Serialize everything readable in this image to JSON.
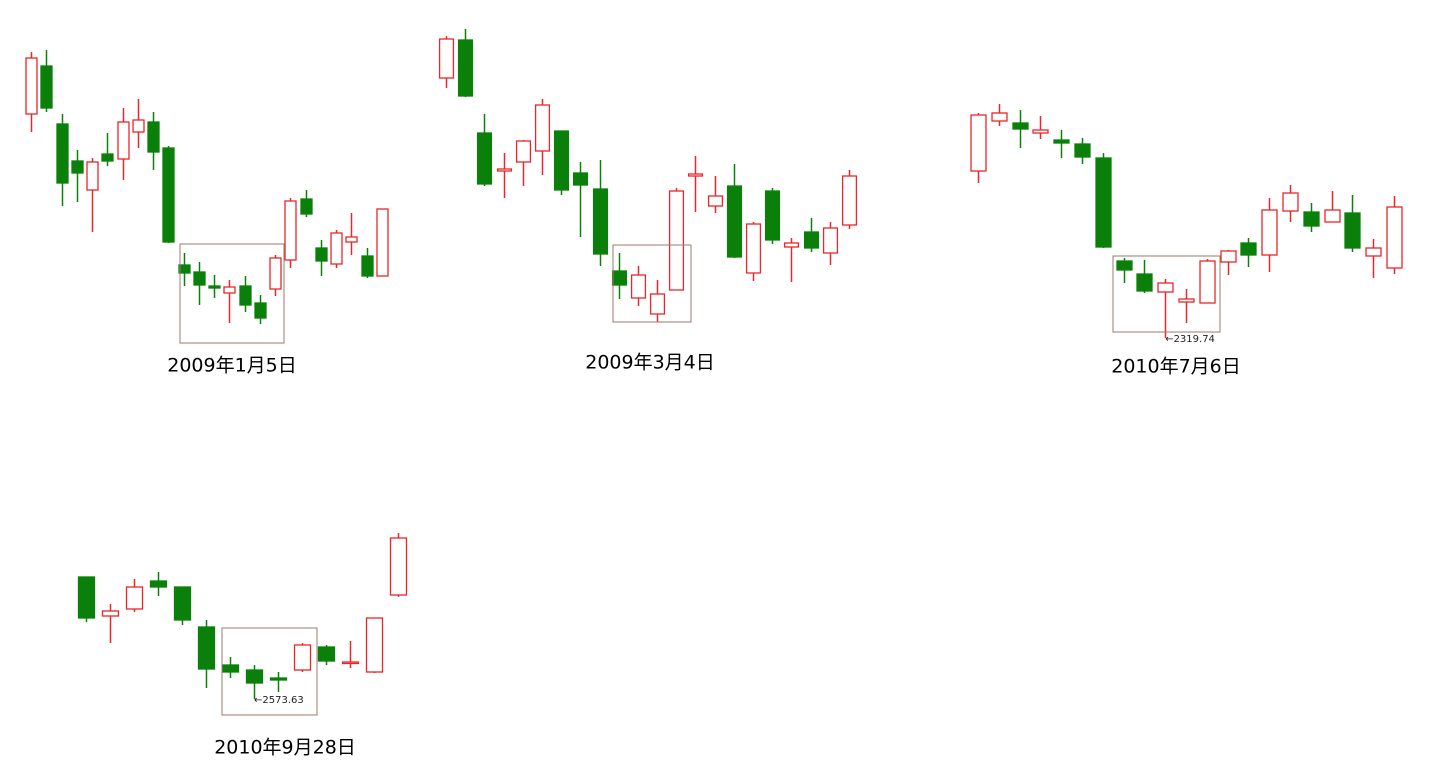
{
  "chart_data": [
    {
      "type": "candlestick",
      "title": "2009年1月5日",
      "ylim": [
        0,
        400
      ],
      "up_color": "#e8262b",
      "down_color": "#0a800a",
      "open": [
        286,
        334,
        276,
        239,
        210,
        246,
        241,
        268,
        278,
        252,
        135,
        128,
        114,
        107,
        114,
        97,
        111,
        140,
        201,
        152,
        136,
        158,
        144,
        124
      ],
      "high": [
        348,
        350,
        286,
        250,
        242,
        267,
        292,
        301,
        288,
        254,
        147,
        138,
        125,
        120,
        124,
        105,
        145,
        202,
        210,
        160,
        170,
        187,
        152,
        191
      ],
      "low": [
        268,
        288,
        194,
        198,
        168,
        234,
        220,
        252,
        230,
        157,
        114,
        95,
        102,
        77,
        88,
        76,
        104,
        132,
        183,
        124,
        132,
        145,
        122,
        124
      ],
      "close": [
        342,
        292,
        217,
        227,
        238,
        239,
        278,
        280,
        248,
        158,
        127,
        115,
        112,
        113,
        95,
        82,
        142,
        199,
        186,
        139,
        167,
        163,
        124,
        191
      ]
    },
    {
      "type": "candlestick",
      "title": "2009年3月4日",
      "ylim": [
        0,
        400
      ],
      "up_color": "#e8262b",
      "down_color": "#0a800a",
      "open": [
        322,
        360,
        267,
        229,
        238,
        249,
        269,
        227,
        211,
        129,
        102,
        86,
        110,
        224,
        194,
        214,
        127,
        209,
        153,
        168,
        147,
        175
      ],
      "high": [
        364,
        371,
        286,
        247,
        260,
        301,
        269,
        238,
        240,
        147,
        134,
        120,
        212,
        244,
        224,
        236,
        178,
        212,
        162,
        182,
        178,
        230
      ],
      "low": [
        312,
        303,
        214,
        202,
        214,
        225,
        205,
        163,
        134,
        101,
        94,
        78,
        110,
        188,
        187,
        142,
        119,
        156,
        118,
        148,
        135,
        171
      ],
      "close": [
        361,
        304,
        216,
        231,
        259,
        295,
        210,
        215,
        146,
        115,
        125,
        106,
        209,
        226,
        204,
        143,
        176,
        160,
        157,
        152,
        172,
        224
      ]
    },
    {
      "type": "candlestick",
      "title": "2010年7月6日",
      "ylim": [
        0,
        400
      ],
      "up_color": "#e8262b",
      "down_color": "#0a800a",
      "annotation": "←2319.74",
      "open": [
        229,
        279,
        277,
        267,
        260,
        256,
        242,
        139,
        126,
        108,
        98,
        97,
        138,
        157,
        145,
        189,
        188,
        178,
        187,
        144,
        132
      ],
      "high": [
        287,
        296,
        290,
        284,
        270,
        262,
        247,
        142,
        140,
        121,
        111,
        141,
        150,
        162,
        202,
        215,
        197,
        209,
        205,
        161,
        204
      ],
      "low": [
        217,
        274,
        252,
        261,
        242,
        236,
        152,
        117,
        107,
        62,
        77,
        97,
        125,
        133,
        128,
        178,
        168,
        178,
        148,
        122,
        126
      ],
      "close": [
        285,
        287,
        271,
        270,
        257,
        243,
        153,
        130,
        109,
        117,
        101,
        139,
        149,
        145,
        190,
        207,
        174,
        190,
        152,
        152,
        193
      ]
    },
    {
      "type": "candlestick",
      "title": "2010年9月28日",
      "ylim": [
        0,
        400
      ],
      "up_color": "#e8262b",
      "down_color": "#0a800a",
      "annotation": "←2573.63",
      "open": [
        223,
        184,
        191,
        219,
        213,
        173,
        135,
        130,
        122,
        130,
        153,
        137,
        128,
        205
      ],
      "high": [
        223,
        196,
        221,
        228,
        213,
        180,
        143,
        135,
        128,
        157,
        155,
        159,
        182,
        267
      ],
      "low": [
        178,
        157,
        188,
        204,
        175,
        112,
        122,
        101,
        108,
        128,
        135,
        132,
        127,
        203
      ],
      "close": [
        182,
        189,
        213,
        213,
        180,
        131,
        128,
        117,
        120,
        155,
        139,
        138,
        182,
        262
      ]
    }
  ]
}
